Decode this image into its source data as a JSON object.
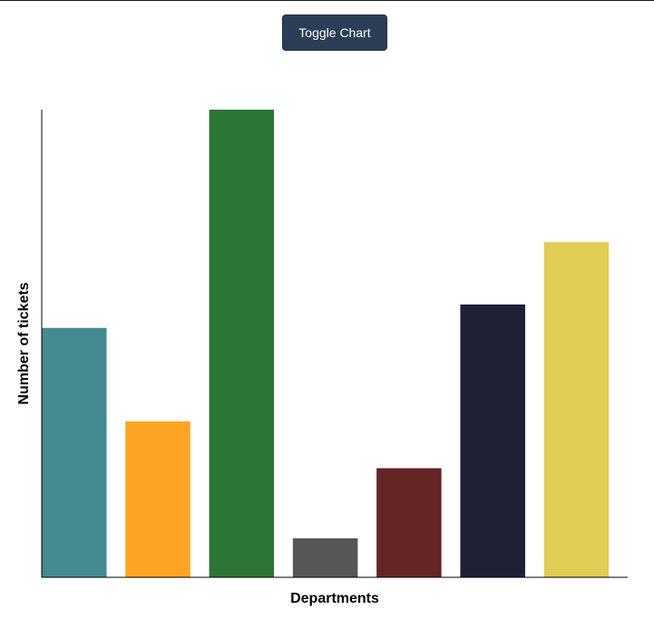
{
  "toolbar": {
    "toggle_label": "Toggle Chart"
  },
  "chart_data": {
    "type": "bar",
    "xlabel": "Departments",
    "ylabel": "Number of tickets",
    "categories": [
      "",
      "",
      "",
      "",
      "",
      "",
      ""
    ],
    "values": [
      16,
      10,
      30,
      2.5,
      7,
      17.5,
      21.5
    ],
    "colors": [
      "#438b90",
      "#fea424",
      "#2c7535",
      "#545756",
      "#652425",
      "#1f2036",
      "#e0cd54"
    ],
    "ylim": [
      0,
      30
    ],
    "grid": false,
    "legend": "none"
  }
}
